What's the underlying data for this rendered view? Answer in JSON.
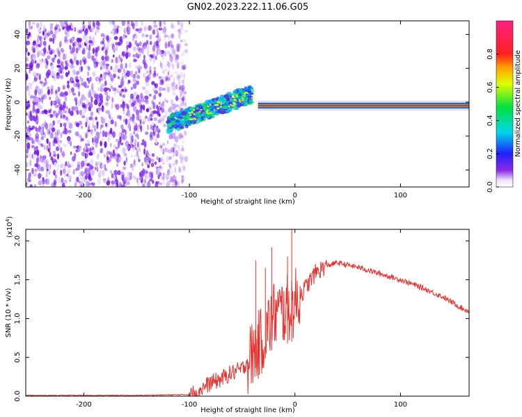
{
  "title": "GN02.2023.222.11.06.G05",
  "colors": {
    "snr_line": "#e8302c",
    "background": "#ffffff",
    "axis": "#000000"
  },
  "chart_data": [
    {
      "type": "heatmap",
      "xlabel": "Height of straight line (km)",
      "ylabel": "Frequency (Hz)",
      "xlim": [
        -255,
        165
      ],
      "ylim": [
        -50,
        48
      ],
      "x_ticks": [
        -200,
        -100,
        0,
        100
      ],
      "x_tick_labels": [
        "-200",
        "-100",
        "0",
        "100"
      ],
      "y_ticks": [
        -40,
        -20,
        0,
        20,
        40
      ],
      "y_tick_labels": [
        "-40",
        "-20",
        "0",
        "20",
        "40"
      ],
      "colorbar": {
        "label": "Normalized spectral amplitude",
        "range": [
          0,
          1
        ],
        "ticks": [
          0.0,
          0.2,
          0.4,
          0.6,
          0.8
        ],
        "tick_labels": [
          "0.0",
          "0.2",
          "0.4",
          "0.6",
          "0.8"
        ],
        "colormap": "rainbow (white-purple-blue-cyan-green-yellow-red-magenta)"
      },
      "features": [
        {
          "x_range": [
            -255,
            -103
          ],
          "description": "broadband noise"
        },
        {
          "x_range": [
            -120,
            -40
          ],
          "freq_start": -13,
          "freq_end": 5,
          "description": "rising signal trace"
        },
        {
          "x_range": [
            -35,
            165
          ],
          "freq": -2,
          "description": "stable carrier line"
        }
      ]
    },
    {
      "type": "line",
      "xlabel": "Height of straight line (km)",
      "ylabel": "SNR (10 * v/v)",
      "y_multiplier_label": "(x10",
      "y_multiplier_exp": "4",
      "y_multiplier_close": ")",
      "xlim": [
        -255,
        165
      ],
      "ylim": [
        0,
        2.15
      ],
      "x_ticks": [
        -200,
        -100,
        0,
        100
      ],
      "x_tick_labels": [
        "-200",
        "-100",
        "0",
        "100"
      ],
      "y_ticks": [
        0.0,
        0.5,
        1.0,
        1.5,
        2.0
      ],
      "y_tick_labels": [
        "0.0",
        "0.5",
        "1.0",
        "1.5",
        "2.0"
      ],
      "series": [
        {
          "x": [
            -255,
            -200,
            -150,
            -100,
            -90,
            -80,
            -70,
            -60,
            -50,
            -40,
            -30,
            -20,
            -10,
            0,
            10,
            20,
            30,
            40,
            60,
            80,
            100,
            120,
            140,
            160,
            165
          ],
          "values": [
            0.01,
            0.01,
            0.01,
            0.02,
            0.08,
            0.17,
            0.22,
            0.3,
            0.35,
            0.55,
            0.75,
            1.05,
            1.1,
            1.2,
            1.4,
            1.6,
            1.68,
            1.72,
            1.66,
            1.58,
            1.5,
            1.4,
            1.28,
            1.12,
            1.1
          ],
          "noise_peaks": [
            {
              "x": -37,
              "value": 1.75
            },
            {
              "x": -28,
              "value": 1.65
            },
            {
              "x": -22,
              "value": 1.92
            },
            {
              "x": -7,
              "value": 1.8
            },
            {
              "x": -3,
              "value": 2.15
            }
          ]
        }
      ]
    }
  ]
}
